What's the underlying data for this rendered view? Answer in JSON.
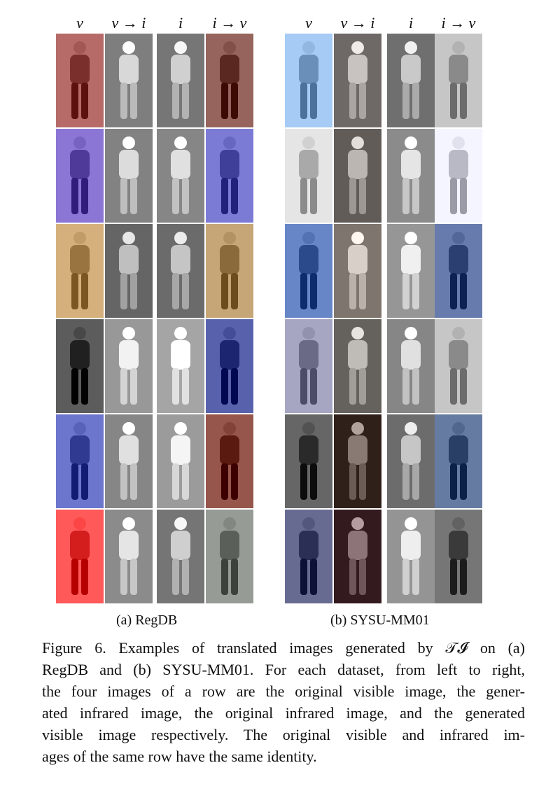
{
  "panels": [
    {
      "id": "regdb",
      "column_headers": [
        "v",
        "v → i",
        "i",
        "i → v"
      ],
      "sub_caption": "(a) RegDB"
    },
    {
      "id": "sysu",
      "column_headers": [
        "v",
        "v → i",
        "i",
        "i → v"
      ],
      "sub_caption": "(b) SYSU-MM01"
    }
  ],
  "figure_caption": {
    "lines": [
      "Figure 6. Examples of translated images generated by 𝒯𝓘 on (a)",
      "RegDB and (b) SYSU-MM01. For each dataset, from left to right,",
      "the four images of a row are the original visible image, the gener-",
      "ated infrared image, the original infrared image, and the generated",
      "visible image respectively.  The original visible and infrared im-",
      "ages of the same row have the same identity."
    ]
  },
  "image_rows": [
    {
      "regdb": [
        "#7a2f2c",
        "#d8d8d8",
        "#d0d0d0",
        "#5a2820"
      ],
      "sysu": [
        "#6a8fb8",
        "#c8c2c0",
        "#c9c9c9",
        "#8a8a8a"
      ]
    },
    {
      "regdb": [
        "#4f3a9a",
        "#dcdcdc",
        "#e0e0e0",
        "#3f3f9a"
      ],
      "sysu": [
        "#a9a9a9",
        "#bbb6b2",
        "#e5e5e5",
        "#b8b9c5"
      ]
    },
    {
      "regdb": [
        "#9a7440",
        "#bfbfbf",
        "#c5c5c5",
        "#8a6a3a"
      ],
      "sysu": [
        "#2b4a8c",
        "#d7cfc8",
        "#f0f0f0",
        "#2b4070"
      ]
    },
    {
      "regdb": [
        "#202020",
        "#f2f2f2",
        "#ffffff",
        "#1c2670"
      ],
      "sysu": [
        "#6a6a86",
        "#bfbcb8",
        "#e0e0e0",
        "#8a8a8a"
      ]
    },
    {
      "regdb": [
        "#2f3a90",
        "#e0e0e0",
        "#f5f5f5",
        "#5a1a10"
      ],
      "sysu": [
        "#2a2a2a",
        "#8a7a74",
        "#c6c6c6",
        "#2a3f66"
      ]
    },
    {
      "regdb": [
        "#d41d1d",
        "#e5e5e5",
        "#cfcfcf",
        "#5a5f5a"
      ],
      "sysu": [
        "#2c2f55",
        "#8d7478",
        "#eeeeee",
        "#3a3a3a"
      ]
    }
  ]
}
